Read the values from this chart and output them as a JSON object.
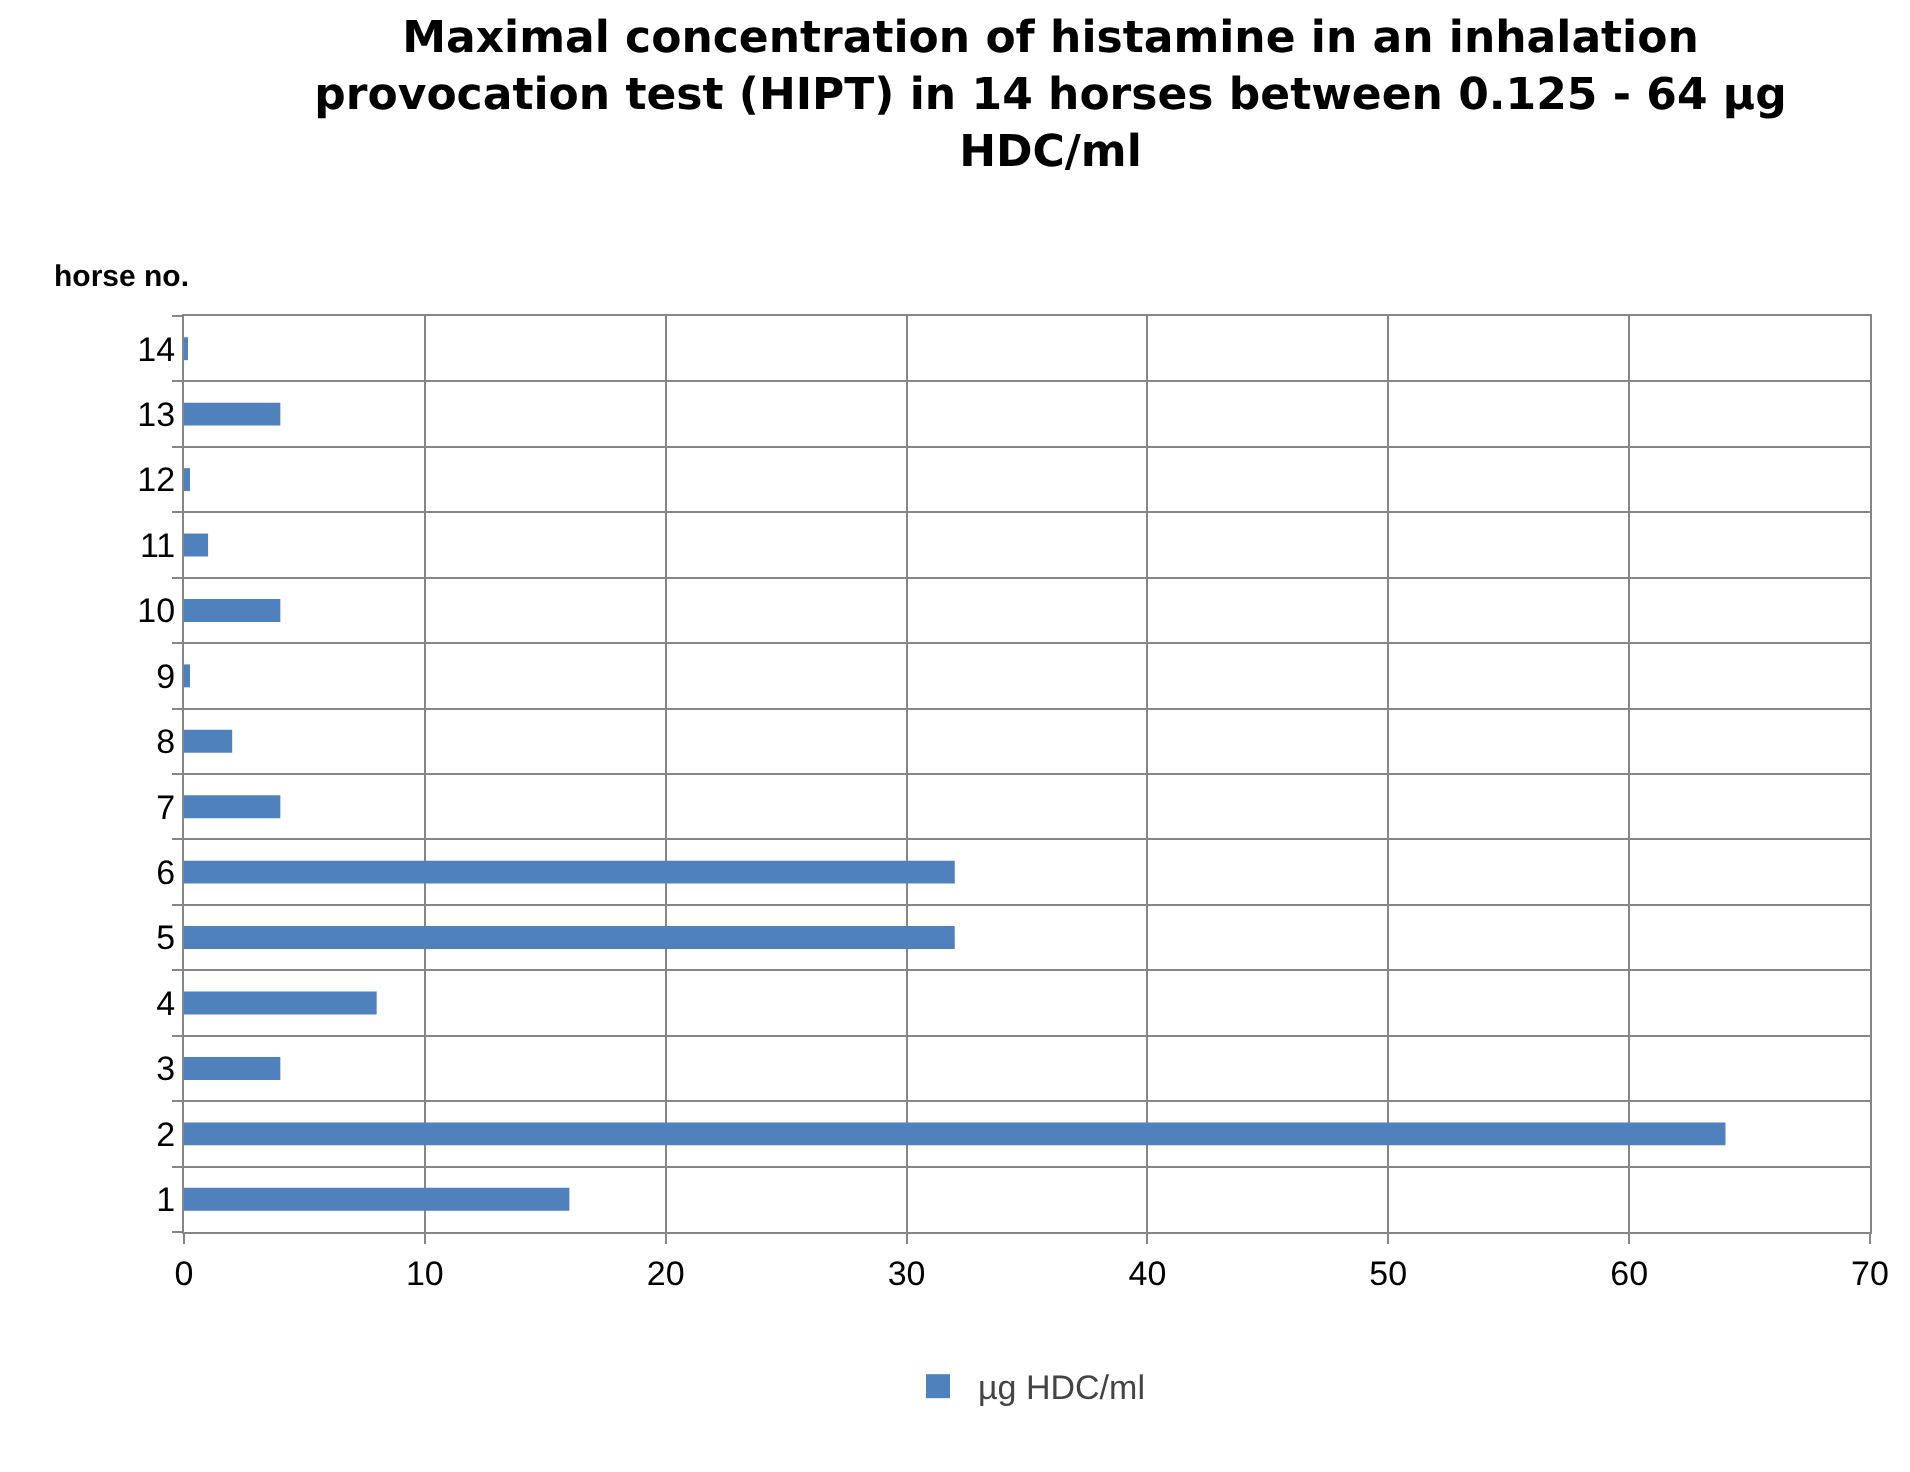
{
  "chart_data": {
    "type": "bar",
    "orientation": "horizontal",
    "title": "Maximal concentration of histamine in an inhalation provocation test (HIPT) in 14 horses between 0.125 - 64 µg HDC/ml",
    "ylabel": "horse no.",
    "categories": [
      "14",
      "13",
      "12",
      "11",
      "10",
      "9",
      "8",
      "7",
      "6",
      "5",
      "4",
      "3",
      "2",
      "1"
    ],
    "series": [
      {
        "name": "µg HDC/ml",
        "color": "#4f81bd",
        "values": [
          0.125,
          4,
          0.25,
          1,
          4,
          0.25,
          2,
          4,
          32,
          32,
          8,
          4,
          64,
          16
        ]
      }
    ],
    "xlim": [
      0,
      70
    ],
    "xticks": [
      0,
      10,
      20,
      30,
      40,
      50,
      60,
      70
    ],
    "grid": true,
    "legend": "bottom"
  }
}
